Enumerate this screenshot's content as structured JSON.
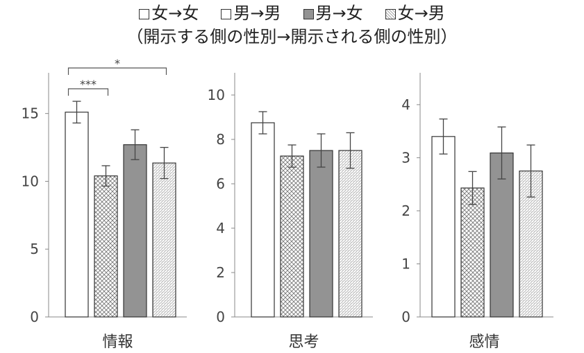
{
  "legend": [
    {
      "label": "女→女",
      "pattern": "white"
    },
    {
      "label": "男→男",
      "pattern": "crosshatch"
    },
    {
      "label": "男→女",
      "pattern": "gray"
    },
    {
      "label": "女→男",
      "pattern": "dots"
    }
  ],
  "subtitle": "（開示する側の性別→開示される側の性別）",
  "colors": {
    "bar_gray": "#939393",
    "stroke": "#333333",
    "axis": "#888888"
  },
  "chart_data": [
    {
      "type": "bar",
      "xlabel": "情報",
      "ylim": [
        0,
        18
      ],
      "yticks": [
        0,
        5,
        10,
        15
      ],
      "series": [
        {
          "name": "女→女",
          "values": [
            15.1
          ],
          "errors": [
            0.8
          ]
        },
        {
          "name": "男→男",
          "values": [
            10.4
          ],
          "errors": [
            0.75
          ]
        },
        {
          "name": "男→女",
          "values": [
            12.7
          ],
          "errors": [
            1.1
          ]
        },
        {
          "name": "女→男",
          "values": [
            11.35
          ],
          "errors": [
            1.15
          ]
        }
      ],
      "annotations": [
        {
          "label": "***",
          "from": 0,
          "to": 1
        },
        {
          "label": "*",
          "from": 0,
          "to": 3
        }
      ]
    },
    {
      "type": "bar",
      "xlabel": "思考",
      "ylim": [
        0,
        11
      ],
      "yticks": [
        0,
        2,
        4,
        6,
        8,
        10
      ],
      "series": [
        {
          "name": "女→女",
          "values": [
            8.75
          ],
          "errors": [
            0.5
          ]
        },
        {
          "name": "男→男",
          "values": [
            7.25
          ],
          "errors": [
            0.5
          ]
        },
        {
          "name": "男→女",
          "values": [
            7.5
          ],
          "errors": [
            0.75
          ]
        },
        {
          "name": "女→男",
          "values": [
            7.5
          ],
          "errors": [
            0.8
          ]
        }
      ],
      "annotations": []
    },
    {
      "type": "bar",
      "xlabel": "感情",
      "ylim": [
        0,
        4.6
      ],
      "yticks": [
        0,
        1,
        2,
        3,
        4
      ],
      "series": [
        {
          "name": "女→女",
          "values": [
            3.4
          ],
          "errors": [
            0.33
          ]
        },
        {
          "name": "男→男",
          "values": [
            2.43
          ],
          "errors": [
            0.31
          ]
        },
        {
          "name": "男→女",
          "values": [
            3.09
          ],
          "errors": [
            0.49
          ]
        },
        {
          "name": "女→男",
          "values": [
            2.75
          ],
          "errors": [
            0.49
          ]
        }
      ],
      "annotations": []
    }
  ]
}
